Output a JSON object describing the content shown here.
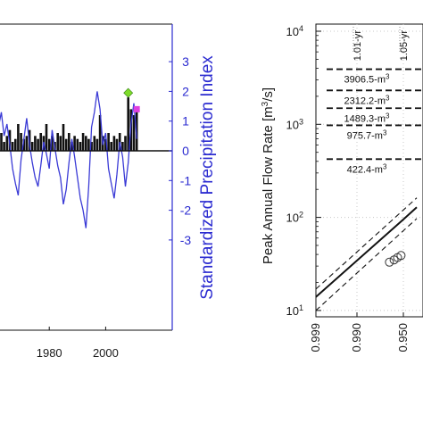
{
  "chart_data": [
    {
      "type": "bar",
      "title": "",
      "xlabel": "",
      "ylabel_right": "Standardized Precipitation Index",
      "x_ticks": [
        1980,
        2000
      ],
      "xlim": [
        1962,
        2012
      ],
      "right_ylim": [
        -3,
        3
      ],
      "right_ticks": [
        -3,
        -2,
        -1,
        0,
        1,
        2,
        3
      ],
      "colors": {
        "bars": "#111111",
        "spi_line": "#3a3ad6",
        "right_axis": "#2b2bd0",
        "marker_green": "#7fdc2a",
        "marker_magenta": "#e040e0"
      },
      "series": [
        {
          "kind": "bar",
          "x": [
            1962,
            1963,
            1964,
            1965,
            1966,
            1967,
            1968,
            1969,
            1970,
            1971,
            1972,
            1973,
            1974,
            1975,
            1976,
            1977,
            1978,
            1979,
            1980,
            1981,
            1982,
            1983,
            1984,
            1985,
            1986,
            1987,
            1988,
            1989,
            1990,
            1991,
            1992,
            1993,
            1994,
            1995,
            1996,
            1997,
            1998,
            1999,
            2000,
            2001,
            2002,
            2003,
            2004,
            2005,
            2006,
            2007,
            2008,
            2009,
            2010,
            2011
          ],
          "values": [
            1.1,
            0.6,
            0.3,
            0.5,
            0.7,
            0.3,
            0.4,
            0.9,
            0.6,
            0.4,
            0.5,
            0.7,
            0.3,
            0.5,
            0.4,
            0.6,
            0.5,
            0.9,
            0.4,
            0.5,
            0.3,
            0.6,
            0.5,
            0.9,
            0.4,
            0.6,
            0.3,
            0.5,
            0.4,
            0.3,
            0.6,
            0.5,
            0.4,
            0.3,
            0.5,
            0.4,
            1.2,
            0.5,
            0.4,
            0.6,
            0.3,
            0.5,
            0.4,
            0.6,
            0.3,
            0.5,
            1.8,
            1.4,
            1.2,
            1.35
          ]
        },
        {
          "kind": "line",
          "x": [
            1962,
            1963,
            1964,
            1965,
            1966,
            1967,
            1968,
            1969,
            1970,
            1971,
            1972,
            1973,
            1974,
            1975,
            1976,
            1977,
            1978,
            1979,
            1980,
            1981,
            1982,
            1983,
            1984,
            1985,
            1986,
            1987,
            1988,
            1989,
            1990,
            1991,
            1992,
            1993,
            1994,
            1995,
            1996,
            1997,
            1998,
            1999,
            2000,
            2001,
            2002,
            2003,
            2004,
            2005,
            2006,
            2007,
            2008,
            2009,
            2010,
            2011
          ],
          "values": [
            0.8,
            1.3,
            0.5,
            0.9,
            0.2,
            -0.6,
            -1.1,
            -1.5,
            -0.3,
            0.4,
            1.1,
            0.2,
            -0.4,
            -0.9,
            -1.2,
            -0.5,
            0.3,
            -0.1,
            -0.6,
            0.7,
            0.1,
            -0.5,
            -0.9,
            -1.8,
            -1.3,
            -0.4,
            0.4,
            -0.2,
            -0.9,
            -1.6,
            -2.0,
            -2.6,
            -1.2,
            0.8,
            1.3,
            2.0,
            1.4,
            0.2,
            0.6,
            -0.6,
            -1.1,
            -1.6,
            -0.8,
            0.3,
            -0.2,
            -1.2,
            -0.4,
            0.9,
            1.6,
            0.4
          ]
        },
        {
          "kind": "marker",
          "x": [
            2008
          ],
          "values": [
            1.95
          ],
          "marker": "diamond",
          "color": "green"
        },
        {
          "kind": "marker",
          "x": [
            2011
          ],
          "values": [
            1.4
          ],
          "marker": "square",
          "color": "magenta"
        }
      ]
    },
    {
      "type": "line",
      "title": "",
      "ylabel": "Peak Annual Flow Rate [m³/s]",
      "yscale": "log",
      "ylim": [
        8,
        10000
      ],
      "y_ticks": [
        {
          "base": "10",
          "exp": "1"
        },
        {
          "base": "10",
          "exp": "2"
        },
        {
          "base": "10",
          "exp": "3"
        },
        {
          "base": "10",
          "exp": "4"
        }
      ],
      "x_ticks": [
        "0.999",
        "0.990",
        "0.950"
      ],
      "return_periods": [
        "1.01-yr",
        "1.05-yr"
      ],
      "thresholds": [
        {
          "value": 3906.5,
          "label": "3906.5-m"
        },
        {
          "value": 2312.2,
          "label": "2312.2-m"
        },
        {
          "value": 1489.3,
          "label": "1489.3-m"
        },
        {
          "value": 975.7,
          "label": "975.7-m"
        },
        {
          "value": 422.4,
          "label": "422.4-m"
        }
      ],
      "unit_sup": "3",
      "fit_line": {
        "x": [
          0.999,
          0.95
        ],
        "values": [
          14,
          95
        ]
      },
      "upper_ci": {
        "x": [
          0.999,
          0.95
        ],
        "values": [
          17,
          120
        ]
      },
      "lower_ci": {
        "x": [
          0.999,
          0.95
        ],
        "values": [
          10,
          72
        ]
      },
      "observations": [
        {
          "x": 0.962,
          "value": 33
        },
        {
          "x": 0.958,
          "value": 35
        },
        {
          "x": 0.955,
          "value": 37
        },
        {
          "x": 0.952,
          "value": 39
        }
      ],
      "colors": {
        "line": "#111111",
        "grid": "#c8c8c8"
      }
    }
  ]
}
